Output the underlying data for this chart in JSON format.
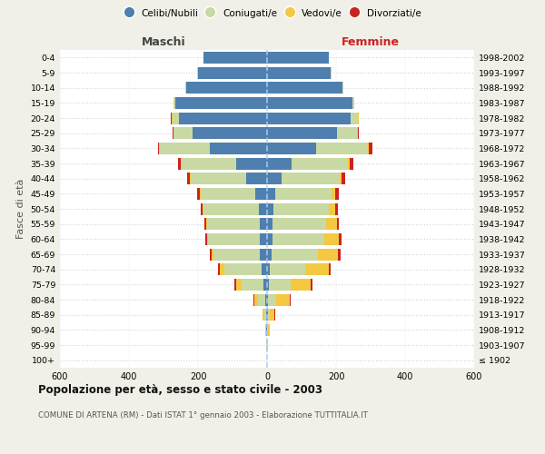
{
  "age_groups": [
    "100+",
    "95-99",
    "90-94",
    "85-89",
    "80-84",
    "75-79",
    "70-74",
    "65-69",
    "60-64",
    "55-59",
    "50-54",
    "45-49",
    "40-44",
    "35-39",
    "30-34",
    "25-29",
    "20-24",
    "15-19",
    "10-14",
    "5-9",
    "0-4"
  ],
  "birth_years": [
    "≤ 1902",
    "1903-1907",
    "1908-1912",
    "1913-1917",
    "1918-1922",
    "1923-1927",
    "1928-1932",
    "1933-1937",
    "1938-1942",
    "1943-1947",
    "1948-1952",
    "1953-1957",
    "1958-1962",
    "1963-1967",
    "1968-1972",
    "1973-1977",
    "1978-1982",
    "1983-1987",
    "1988-1992",
    "1993-1997",
    "1998-2002"
  ],
  "maschi": {
    "celibi": [
      0,
      1,
      2,
      3,
      5,
      10,
      16,
      20,
      22,
      22,
      25,
      35,
      60,
      90,
      165,
      215,
      255,
      265,
      235,
      200,
      185
    ],
    "coniugati": [
      0,
      1,
      2,
      6,
      22,
      65,
      108,
      135,
      148,
      152,
      158,
      158,
      162,
      158,
      145,
      55,
      20,
      5,
      3,
      2,
      0
    ],
    "vedovi": [
      0,
      0,
      1,
      4,
      10,
      14,
      12,
      6,
      4,
      3,
      3,
      2,
      2,
      2,
      2,
      2,
      1,
      0,
      0,
      0,
      0
    ],
    "divorziati": [
      0,
      0,
      0,
      0,
      2,
      5,
      6,
      5,
      5,
      5,
      6,
      8,
      8,
      8,
      5,
      3,
      2,
      0,
      0,
      0,
      0
    ]
  },
  "femmine": {
    "nubili": [
      0,
      1,
      1,
      2,
      3,
      5,
      8,
      12,
      15,
      16,
      18,
      24,
      42,
      72,
      142,
      202,
      242,
      248,
      218,
      185,
      178
    ],
    "coniugate": [
      0,
      1,
      2,
      6,
      24,
      64,
      102,
      136,
      152,
      156,
      160,
      162,
      168,
      162,
      150,
      58,
      22,
      5,
      3,
      2,
      0
    ],
    "vedove": [
      0,
      1,
      4,
      14,
      38,
      58,
      68,
      58,
      42,
      30,
      20,
      12,
      7,
      5,
      4,
      2,
      1,
      0,
      0,
      0,
      0
    ],
    "divorziate": [
      0,
      0,
      0,
      1,
      4,
      5,
      5,
      6,
      8,
      6,
      6,
      10,
      10,
      10,
      8,
      4,
      2,
      0,
      0,
      0,
      0
    ]
  },
  "colors": {
    "celibi": "#4e7faf",
    "coniugati": "#c8d9a3",
    "vedovi": "#f5c842",
    "divorziati": "#cc2222"
  },
  "title": "Popolazione per età, sesso e stato civile - 2003",
  "subtitle": "COMUNE DI ARTENA (RM) - Dati ISTAT 1° gennaio 2003 - Elaborazione TUTTITALIA.IT",
  "maschi_label": "Maschi",
  "femmine_label": "Femmine",
  "ylabel_left": "Fasce di età",
  "xlim": 600,
  "legend_labels": [
    "Celibi/Nubili",
    "Coniugati/e",
    "Vedovi/e",
    "Divorziati/e"
  ],
  "bg_color": "#f0f0e8",
  "plot_bg": "#ffffff"
}
